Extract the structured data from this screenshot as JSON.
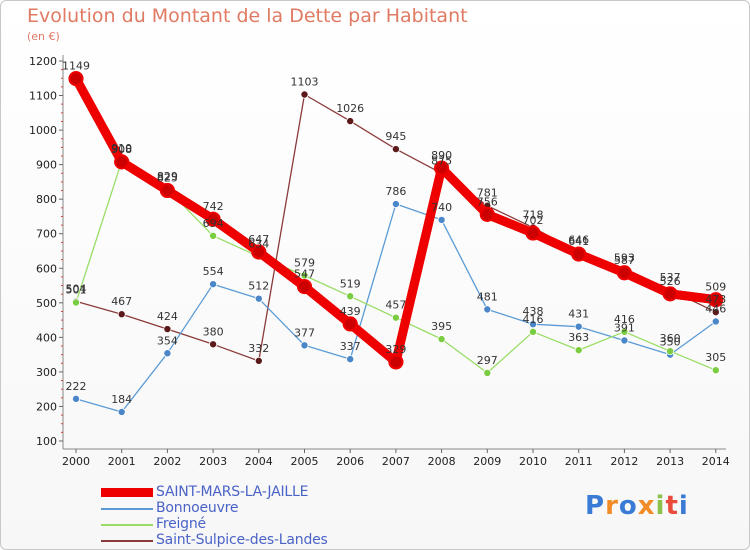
{
  "title": "Evolution du Montant de la Dette par Habitant",
  "unit": "(en €)",
  "logo": "Proxiti",
  "chart_data": {
    "type": "line",
    "title": "Evolution du Montant de la Dette par Habitant",
    "ylabel": "(en €)",
    "x": [
      "2000",
      "2001",
      "2002",
      "2003",
      "2004",
      "2005",
      "2006",
      "2007",
      "2008",
      "2009",
      "2010",
      "2011",
      "2012",
      "2013",
      "2014"
    ],
    "yticks": [
      100,
      200,
      300,
      400,
      500,
      600,
      700,
      800,
      900,
      1000,
      1100,
      1200
    ],
    "ylim": [
      100,
      1200
    ],
    "grid": false,
    "legend": "bottom-left",
    "series": [
      {
        "name": "SAINT-MARS-LA-JAILLE",
        "color": "#ee0000",
        "dot": "#cc0000",
        "width": "thick",
        "values": [
          1149,
          908,
          825,
          742,
          647,
          547,
          439,
          329,
          890,
          756,
          702,
          641,
          587,
          526,
          509
        ]
      },
      {
        "name": "Bonnoeuvre",
        "color": "#5b9bd5",
        "dot": "#4a86c8",
        "width": "thin",
        "values": [
          222,
          184,
          354,
          554,
          512,
          377,
          337,
          786,
          740,
          481,
          438,
          431,
          391,
          350,
          446
        ]
      },
      {
        "name": "Freigné",
        "color": "#99dd66",
        "dot": "#7acc40",
        "width": "thin",
        "values": [
          501,
          910,
          829,
          694,
          634,
          579,
          519,
          457,
          395,
          297,
          416,
          363,
          416,
          360,
          305
        ]
      },
      {
        "name": "Saint-Sulpice-des-Landes",
        "color": "#8b3a3a",
        "dot": "#5c1a1a",
        "width": "thin",
        "segments": [
          [
            0,
            4
          ],
          [
            4,
            14
          ]
        ],
        "values": [
          504,
          467,
          424,
          380,
          332,
          1103,
          1026,
          945,
          875,
          781,
          718,
          646,
          593,
          537,
          473
        ]
      }
    ],
    "labels": [
      {
        "series": 0,
        "index": 0,
        "text": "1149"
      },
      {
        "series": 0,
        "index": 1,
        "text": "908"
      },
      {
        "series": 0,
        "index": 2,
        "text": "825"
      },
      {
        "series": 0,
        "index": 3,
        "text": "742"
      },
      {
        "series": 0,
        "index": 4,
        "text": "647"
      },
      {
        "series": 0,
        "index": 5,
        "text": "547"
      },
      {
        "series": 0,
        "index": 6,
        "text": "439"
      },
      {
        "series": 0,
        "index": 7,
        "text": "329"
      },
      {
        "series": 0,
        "index": 8,
        "text": "890"
      },
      {
        "series": 0,
        "index": 9,
        "text": "756"
      },
      {
        "series": 0,
        "index": 10,
        "text": "702"
      },
      {
        "series": 0,
        "index": 11,
        "text": "641"
      },
      {
        "series": 0,
        "index": 12,
        "text": "587"
      },
      {
        "series": 0,
        "index": 13,
        "text": "526"
      },
      {
        "series": 0,
        "index": 14,
        "text": "509"
      },
      {
        "series": 1,
        "index": 0,
        "text": "222"
      },
      {
        "series": 1,
        "index": 1,
        "text": "184"
      },
      {
        "series": 1,
        "index": 2,
        "text": "354"
      },
      {
        "series": 1,
        "index": 3,
        "text": "554"
      },
      {
        "series": 1,
        "index": 4,
        "text": "512"
      },
      {
        "series": 1,
        "index": 5,
        "text": "377"
      },
      {
        "series": 1,
        "index": 6,
        "text": "337"
      },
      {
        "series": 1,
        "index": 7,
        "text": "786"
      },
      {
        "series": 1,
        "index": 8,
        "text": "740"
      },
      {
        "series": 1,
        "index": 9,
        "text": "481"
      },
      {
        "series": 1,
        "index": 10,
        "text": "438"
      },
      {
        "series": 1,
        "index": 11,
        "text": "431"
      },
      {
        "series": 1,
        "index": 12,
        "text": "391"
      },
      {
        "series": 1,
        "index": 13,
        "text": "350"
      },
      {
        "series": 1,
        "index": 14,
        "text": "446"
      },
      {
        "series": 2,
        "index": 0,
        "text": "501"
      },
      {
        "series": 2,
        "index": 1,
        "text": "910"
      },
      {
        "series": 2,
        "index": 2,
        "text": "829"
      },
      {
        "series": 2,
        "index": 3,
        "text": "694"
      },
      {
        "series": 2,
        "index": 4,
        "text": "634"
      },
      {
        "series": 2,
        "index": 5,
        "text": "579"
      },
      {
        "series": 2,
        "index": 6,
        "text": "519"
      },
      {
        "series": 2,
        "index": 7,
        "text": "457"
      },
      {
        "series": 2,
        "index": 8,
        "text": "395"
      },
      {
        "series": 2,
        "index": 9,
        "text": "297"
      },
      {
        "series": 2,
        "index": 10,
        "text": "416"
      },
      {
        "series": 2,
        "index": 11,
        "text": "363"
      },
      {
        "series": 2,
        "index": 12,
        "text": "416"
      },
      {
        "series": 2,
        "index": 13,
        "text": "360"
      },
      {
        "series": 2,
        "index": 14,
        "text": "305"
      },
      {
        "series": 3,
        "index": 0,
        "text": "504"
      },
      {
        "series": 3,
        "index": 1,
        "text": "467"
      },
      {
        "series": 3,
        "index": 2,
        "text": "424"
      },
      {
        "series": 3,
        "index": 3,
        "text": "380"
      },
      {
        "series": 3,
        "index": 4,
        "text": "332"
      },
      {
        "series": 3,
        "index": 5,
        "text": "1103"
      },
      {
        "series": 3,
        "index": 6,
        "text": "1026"
      },
      {
        "series": 3,
        "index": 7,
        "text": "945"
      },
      {
        "series": 3,
        "index": 8,
        "text": "875"
      },
      {
        "series": 3,
        "index": 9,
        "text": "781"
      },
      {
        "series": 3,
        "index": 10,
        "text": "718"
      },
      {
        "series": 3,
        "index": 11,
        "text": "646"
      },
      {
        "series": 3,
        "index": 12,
        "text": "593"
      },
      {
        "series": 3,
        "index": 13,
        "text": "537"
      },
      {
        "series": 3,
        "index": 14,
        "text": "473"
      }
    ]
  }
}
